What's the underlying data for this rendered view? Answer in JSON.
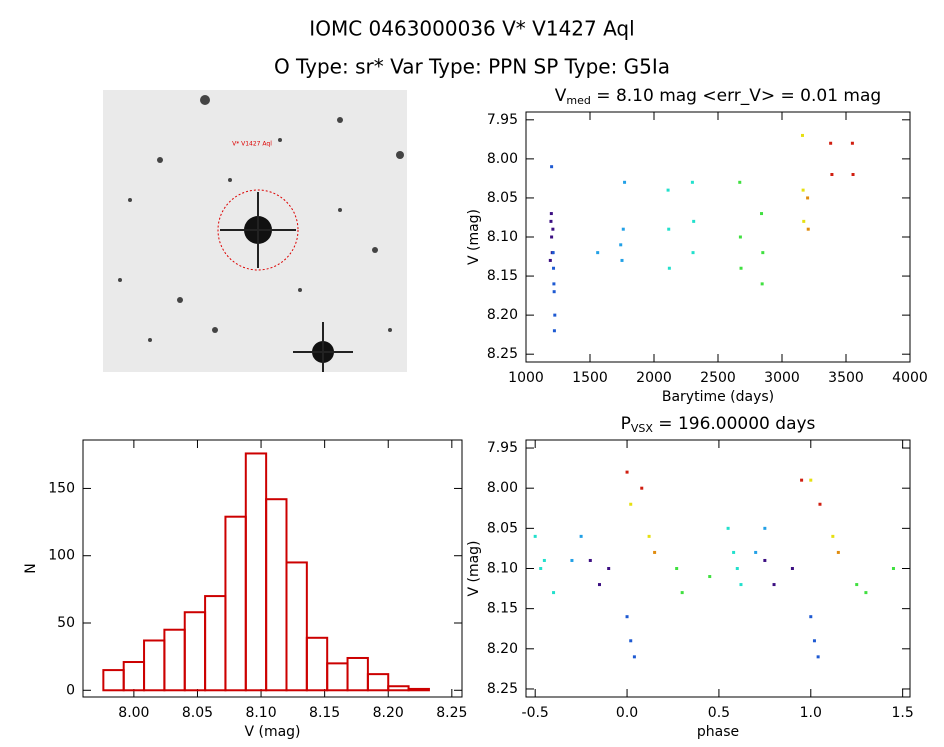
{
  "header": {
    "title": "IOMC 0463000036    V* V1427 Aql",
    "subtitle": "O Type: sr*  Var Type: PPN  SP Type: G5Ia"
  },
  "image": {
    "label": "V* V1427 Aql"
  },
  "chart_data": [
    {
      "type": "scatter",
      "title": [
        "V",
        "med",
        " = 8.10 mag <err_V> = 0.01 mag"
      ],
      "x_label": "Barytime (days)",
      "y_label": "V (mag)",
      "xlim": [
        1000,
        4000
      ],
      "ylim": [
        8.26,
        7.94
      ],
      "xticks": [
        1000,
        1500,
        2000,
        2500,
        3000,
        3500,
        4000
      ],
      "yticks": [
        7.95,
        {
          "value": 8.0,
          "label": "8.00"
        },
        8.05,
        {
          "value": 8.1,
          "label": "8.10"
        },
        8.15,
        {
          "value": 8.2,
          "label": "8.20"
        },
        8.25
      ],
      "series": [
        {
          "color": "#3c0f82",
          "x": [
            1190,
            1195,
            1200,
            1205,
            1210,
            1198
          ],
          "values": [
            8.13,
            8.08,
            8.1,
            8.12,
            8.09,
            8.07
          ]
        },
        {
          "color": "#1e5ad2",
          "x": [
            1212,
            1215,
            1218,
            1220,
            1222,
            1225,
            1200
          ],
          "values": [
            8.12,
            8.14,
            8.16,
            8.17,
            8.22,
            8.2,
            8.01
          ]
        },
        {
          "color": "#22a0e6",
          "x": [
            1560,
            1740,
            1750,
            1760,
            1770
          ],
          "values": [
            8.12,
            8.11,
            8.13,
            8.09,
            8.03
          ]
        },
        {
          "color": "#22e0cc",
          "x": [
            2110,
            2115,
            2120,
            2300,
            2305,
            2310
          ],
          "values": [
            8.04,
            8.09,
            8.14,
            8.03,
            8.12,
            8.08
          ]
        },
        {
          "color": "#40e040",
          "x": [
            2670,
            2675,
            2680,
            2840,
            2845,
            2850
          ],
          "values": [
            8.03,
            8.1,
            8.14,
            8.07,
            8.16,
            8.12
          ]
        },
        {
          "color": "#e6e010",
          "x": [
            3160,
            3165,
            3170
          ],
          "values": [
            7.97,
            8.04,
            8.08
          ]
        },
        {
          "color": "#e08c10",
          "x": [
            3200,
            3205
          ],
          "values": [
            8.05,
            8.09
          ]
        },
        {
          "color": "#d01e10",
          "x": [
            3380,
            3390,
            3550,
            3555
          ],
          "values": [
            7.98,
            8.02,
            7.98,
            8.02
          ]
        }
      ]
    },
    {
      "type": "histogram",
      "x_label": "V (mag)",
      "y_label": "N",
      "color": "#cc0000",
      "xlim": [
        7.96,
        8.258
      ],
      "ylim": [
        -5,
        186
      ],
      "xticks": [
        {
          "value": 8.0,
          "label": "8.00"
        },
        8.05,
        {
          "value": 8.1,
          "label": "8.10"
        },
        8.15,
        {
          "value": 8.2,
          "label": "8.20"
        },
        8.25
      ],
      "yticks": [
        0,
        50,
        100,
        150
      ],
      "bins": [
        7.976,
        7.992,
        8.008,
        8.024,
        8.04,
        8.056,
        8.072,
        8.088,
        8.104,
        8.12,
        8.136,
        8.152,
        8.168,
        8.184,
        8.2,
        8.216,
        8.232
      ],
      "values": [
        15,
        21,
        37,
        45,
        58,
        70,
        129,
        176,
        142,
        95,
        39,
        20,
        24,
        12,
        3,
        1
      ]
    },
    {
      "type": "scatter",
      "title": [
        "P",
        "VSX",
        " = 196.00000 days"
      ],
      "x_label": "phase",
      "y_label": "V (mag)",
      "xlim": [
        -0.55,
        1.54
      ],
      "ylim": [
        8.26,
        7.94
      ],
      "xticks": [
        -0.5,
        {
          "value": 0,
          "label": "0.0"
        },
        0.5,
        {
          "value": 1,
          "label": "1.0"
        },
        1.5
      ],
      "yticks": [
        7.95,
        {
          "value": 8.0,
          "label": "8.00"
        },
        8.05,
        {
          "value": 8.1,
          "label": "8.10"
        },
        8.15,
        {
          "value": 8.2,
          "label": "8.20"
        },
        8.25
      ],
      "series": [
        {
          "color": "#22e0cc",
          "x": [
            -0.5,
            -0.47,
            -0.45,
            -0.4,
            0.55,
            0.58,
            0.6,
            0.62
          ],
          "values": [
            8.06,
            8.1,
            8.09,
            8.13,
            8.05,
            8.08,
            8.1,
            8.12
          ]
        },
        {
          "color": "#3c0f82",
          "x": [
            -0.2,
            -0.15,
            -0.1,
            0.75,
            0.8,
            0.9
          ],
          "values": [
            8.09,
            8.12,
            8.1,
            8.09,
            8.12,
            8.1
          ]
        },
        {
          "color": "#1e5ad2",
          "x": [
            0.0,
            0.02,
            0.04,
            1.0,
            1.02,
            1.04
          ],
          "values": [
            8.16,
            8.19,
            8.21,
            8.16,
            8.19,
            8.21
          ]
        },
        {
          "color": "#d01e10",
          "x": [
            0.0,
            0.08,
            0.95,
            1.05
          ],
          "values": [
            7.98,
            8.0,
            7.99,
            8.02
          ]
        },
        {
          "color": "#e6e010",
          "x": [
            0.02,
            0.12,
            1.0,
            1.12
          ],
          "values": [
            8.02,
            8.06,
            7.99,
            8.06
          ]
        },
        {
          "color": "#e08c10",
          "x": [
            0.15,
            1.15
          ],
          "values": [
            8.08,
            8.08
          ]
        },
        {
          "color": "#40e040",
          "x": [
            0.27,
            0.3,
            0.45,
            1.25,
            1.3,
            1.45
          ],
          "values": [
            8.1,
            8.13,
            8.11,
            8.12,
            8.13,
            8.1
          ]
        },
        {
          "color": "#22a0e6",
          "x": [
            -0.3,
            -0.25,
            0.7,
            0.75
          ],
          "values": [
            8.09,
            8.06,
            8.08,
            8.05
          ]
        }
      ]
    }
  ]
}
